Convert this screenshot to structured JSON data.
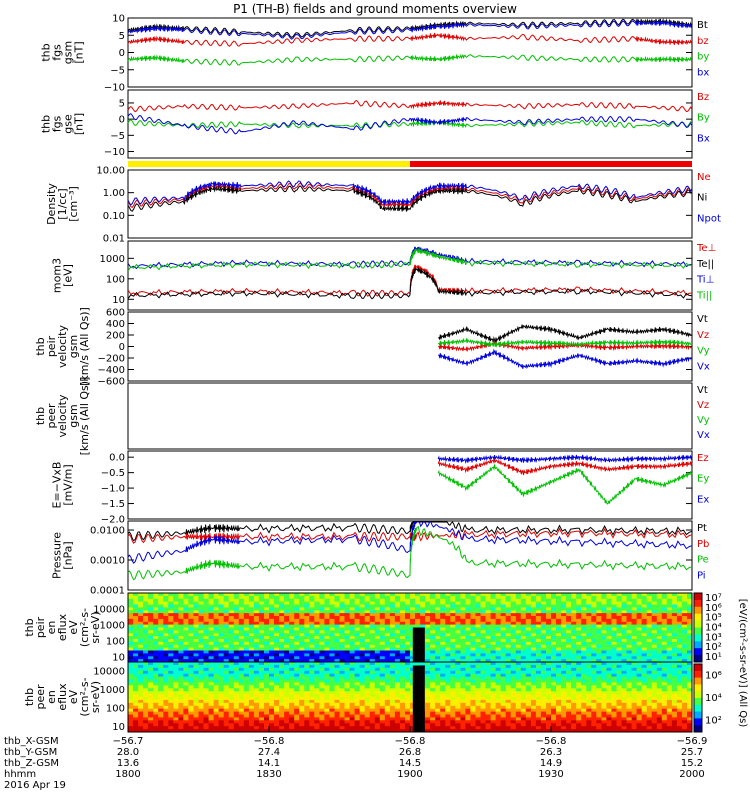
{
  "title": "P1 (TH-B) fields and ground moments overview",
  "chart_data": [
    {
      "type": "line",
      "ylabel": [
        "thb",
        "fgs",
        "gsm",
        "[nT]"
      ],
      "ylim": [
        -10,
        10
      ],
      "yticks": [
        "10",
        "5",
        "0",
        "−5",
        "−10"
      ],
      "legend": [
        "Bt",
        "bz",
        "by",
        "bx"
      ],
      "legend_colors": [
        "#000000",
        "#e00000",
        "#00c000",
        "#0000dd"
      ],
      "series": [
        {
          "name": "Bt",
          "x": [
            0,
            0.05,
            0.1,
            0.2,
            0.3,
            0.4,
            0.5,
            0.55,
            0.6,
            0.7,
            0.8,
            0.9,
            0.95,
            1.0
          ],
          "values": [
            6.5,
            7.5,
            7,
            6,
            5,
            6.5,
            7,
            8,
            8.5,
            8,
            8.5,
            9,
            9,
            8
          ]
        },
        {
          "name": "bz",
          "x": [
            0,
            0.05,
            0.1,
            0.2,
            0.3,
            0.4,
            0.5,
            0.55,
            0.6,
            0.7,
            0.8,
            0.9,
            0.95,
            1.0
          ],
          "values": [
            3,
            4,
            3,
            2.5,
            3.5,
            4,
            4,
            5,
            4,
            4.5,
            3.5,
            4,
            3,
            3
          ]
        },
        {
          "name": "by",
          "x": [
            0,
            0.05,
            0.1,
            0.2,
            0.3,
            0.4,
            0.5,
            0.55,
            0.6,
            0.7,
            0.8,
            0.9,
            0.95,
            1.0
          ],
          "values": [
            -2,
            -1.5,
            -2.5,
            -3,
            -2,
            -2,
            -1.5,
            -2,
            -1,
            -1.5,
            -2,
            -2,
            -2,
            -2
          ]
        },
        {
          "name": "bx",
          "x": [
            0,
            0.05,
            0.1,
            0.2,
            0.3,
            0.4,
            0.5,
            0.55,
            0.6,
            0.7,
            0.8,
            0.9,
            0.95,
            1.0
          ],
          "values": [
            6,
            7,
            6.5,
            5.5,
            4.5,
            6,
            6.5,
            7.5,
            8,
            7.5,
            8,
            8.5,
            8.5,
            7.5
          ]
        }
      ]
    },
    {
      "type": "line",
      "ylabel": [
        "thb",
        "fgs",
        "gse",
        "[nT]"
      ],
      "ylim": [
        -12,
        9
      ],
      "yticks": [
        "5",
        "0",
        "−5",
        "−10"
      ],
      "legend": [
        "Bz",
        "By",
        "Bx"
      ],
      "legend_colors": [
        "#e00000",
        "#00c000",
        "#0000dd"
      ],
      "series": [
        {
          "name": "Bz",
          "x": [
            0,
            0.1,
            0.2,
            0.3,
            0.4,
            0.5,
            0.55,
            0.6,
            0.7,
            0.8,
            0.9,
            1.0
          ],
          "values": [
            3,
            4,
            3.5,
            4,
            5,
            4,
            5,
            4.5,
            4,
            4.5,
            4,
            3
          ]
        },
        {
          "name": "By",
          "x": [
            0,
            0.1,
            0.2,
            0.3,
            0.4,
            0.5,
            0.55,
            0.6,
            0.7,
            0.8,
            0.9,
            1.0
          ],
          "values": [
            -1,
            -2,
            -1.5,
            -2,
            -2,
            -1.5,
            -1,
            -2,
            -1.5,
            -1,
            -2,
            -1.5
          ]
        },
        {
          "name": "Bx",
          "x": [
            0,
            0.1,
            0.2,
            0.3,
            0.4,
            0.5,
            0.55,
            0.6,
            0.7,
            0.8,
            0.9,
            1.0
          ],
          "values": [
            1,
            -2,
            -4,
            -1,
            -3,
            0,
            -1,
            0,
            -1,
            0,
            0,
            -2
          ]
        }
      ]
    },
    {
      "type": "line",
      "ylabel": [
        "Density",
        "[1/cc]",
        "[cm⁻³]"
      ],
      "ylim": [
        0.01,
        10
      ],
      "yscale": "log",
      "yticks": [
        "10.00",
        "1.00",
        "0.10",
        "0.01"
      ],
      "legend": [
        "Ne",
        "Ni",
        "Npot"
      ],
      "legend_colors": [
        "#e00000",
        "#000000",
        "#0000dd"
      ],
      "series": [
        {
          "name": "Ne",
          "x": [
            0,
            0.1,
            0.15,
            0.2,
            0.3,
            0.4,
            0.45,
            0.5,
            0.55,
            0.6,
            0.7,
            0.8,
            0.9,
            1.0
          ],
          "values": [
            0.3,
            0.5,
            2,
            1.5,
            2,
            1.5,
            0.3,
            0.3,
            1.5,
            1.5,
            0.4,
            1.5,
            0.5,
            1.2
          ]
        },
        {
          "name": "Ni",
          "x": [
            0,
            0.1,
            0.15,
            0.2,
            0.3,
            0.4,
            0.45,
            0.5,
            0.55,
            0.6,
            0.7,
            0.8,
            0.9,
            1.0
          ],
          "values": [
            0.2,
            0.4,
            1.5,
            1.2,
            1.5,
            1.2,
            0.2,
            0.2,
            1.2,
            1.2,
            0.3,
            1.2,
            0.4,
            1
          ]
        },
        {
          "name": "Npot",
          "x": [
            0,
            0.1,
            0.15,
            0.2,
            0.3,
            0.4,
            0.45,
            0.5,
            0.55,
            0.6,
            0.7,
            0.8,
            0.9,
            1.0
          ],
          "values": [
            0.4,
            0.6,
            2.5,
            2,
            2.5,
            2,
            0.4,
            0.4,
            2,
            2,
            0.5,
            2,
            0.6,
            1.5
          ]
        }
      ]
    },
    {
      "type": "line",
      "ylabel": [
        "mom3",
        "[eV]"
      ],
      "ylim": [
        3,
        7000
      ],
      "yscale": "log",
      "yticks": [
        "1000",
        "100",
        "10"
      ],
      "legend": [
        "Te⊥",
        "Te||",
        "Ti⊥",
        "Ti||"
      ],
      "legend_colors": [
        "#e00000",
        "#000000",
        "#0000dd",
        "#00c000"
      ],
      "series": [
        {
          "name": "Te⊥",
          "x": [
            0,
            0.2,
            0.4,
            0.5,
            0.51,
            0.55,
            0.6,
            0.8,
            1.0
          ],
          "values": [
            20,
            25,
            20,
            20,
            400,
            30,
            25,
            30,
            20
          ]
        },
        {
          "name": "Te||",
          "x": [
            0,
            0.2,
            0.4,
            0.5,
            0.51,
            0.55,
            0.6,
            0.8,
            1.0
          ],
          "values": [
            15,
            20,
            15,
            15,
            300,
            25,
            20,
            25,
            15
          ]
        },
        {
          "name": "Ti⊥",
          "x": [
            0,
            0.2,
            0.4,
            0.5,
            0.51,
            0.55,
            0.6,
            0.8,
            1.0
          ],
          "values": [
            400,
            600,
            500,
            600,
            3000,
            1500,
            700,
            600,
            500
          ]
        },
        {
          "name": "Ti||",
          "x": [
            0,
            0.2,
            0.4,
            0.5,
            0.51,
            0.55,
            0.6,
            0.8,
            1.0
          ],
          "values": [
            350,
            500,
            450,
            500,
            2500,
            1200,
            600,
            500,
            450
          ]
        }
      ]
    },
    {
      "type": "line",
      "ylabel": [
        "thb",
        "peir",
        "velocity",
        "gsm",
        "[km/s (All Qs)]"
      ],
      "ylim": [
        -600,
        600
      ],
      "yticks": [
        "600",
        "400",
        "200",
        "0",
        "−200",
        "−400",
        "−600"
      ],
      "legend": [
        "Vt",
        "Vz",
        "Vy",
        "Vx"
      ],
      "legend_colors": [
        "#000000",
        "#e00000",
        "#00c000",
        "#0000dd"
      ],
      "series": [
        {
          "name": "Vt",
          "x": [
            0.55,
            0.6,
            0.65,
            0.7,
            0.75,
            0.8,
            0.85,
            0.9,
            0.95,
            1.0
          ],
          "values": [
            150,
            300,
            100,
            350,
            300,
            150,
            300,
            250,
            300,
            200
          ]
        },
        {
          "name": "Vz",
          "x": [
            0.55,
            0.6,
            0.65,
            0.7,
            0.75,
            0.8,
            0.85,
            0.9,
            0.95,
            1.0
          ],
          "values": [
            0,
            -50,
            50,
            -30,
            0,
            20,
            -20,
            0,
            10,
            -10
          ]
        },
        {
          "name": "Vy",
          "x": [
            0.55,
            0.6,
            0.65,
            0.7,
            0.75,
            0.8,
            0.85,
            0.9,
            0.95,
            1.0
          ],
          "values": [
            50,
            100,
            30,
            80,
            60,
            40,
            70,
            60,
            80,
            50
          ]
        },
        {
          "name": "Vx",
          "x": [
            0.55,
            0.6,
            0.65,
            0.7,
            0.75,
            0.8,
            0.85,
            0.9,
            0.95,
            1.0
          ],
          "values": [
            -150,
            -300,
            -100,
            -350,
            -300,
            -150,
            -300,
            -250,
            -300,
            -200
          ]
        }
      ]
    },
    {
      "type": "line",
      "ylabel": [
        "thb",
        "peer",
        "velocity",
        "gsm",
        "[km/s (All Qs)]"
      ],
      "legend": [
        "Vt",
        "Vz",
        "Vy",
        "Vx"
      ],
      "legend_colors": [
        "#000000",
        "#e00000",
        "#00c000",
        "#0000dd"
      ],
      "series": []
    },
    {
      "type": "line",
      "ylabel": [
        "E=−VxB",
        "[mV/m]"
      ],
      "ylim": [
        -2,
        0.2
      ],
      "yticks": [
        "0.0",
        "−0.5",
        "−1.0",
        "−1.5",
        "−2.0"
      ],
      "legend": [
        "Ez",
        "Ey",
        "Ex"
      ],
      "legend_colors": [
        "#e00000",
        "#00c000",
        "#0000dd"
      ],
      "series": [
        {
          "name": "Ez",
          "x": [
            0.55,
            0.6,
            0.65,
            0.7,
            0.75,
            0.8,
            0.85,
            0.9,
            0.95,
            1.0
          ],
          "values": [
            -0.2,
            -0.4,
            -0.1,
            -0.5,
            -0.3,
            -0.2,
            -0.4,
            -0.3,
            -0.3,
            -0.2
          ]
        },
        {
          "name": "Ey",
          "x": [
            0.55,
            0.6,
            0.65,
            0.7,
            0.75,
            0.8,
            0.85,
            0.9,
            0.95,
            1.0
          ],
          "values": [
            -0.5,
            -1.0,
            -0.3,
            -1.2,
            -0.8,
            -0.4,
            -1.5,
            -0.7,
            -0.9,
            -0.5
          ]
        },
        {
          "name": "Ex",
          "x": [
            0.55,
            0.6,
            0.65,
            0.7,
            0.75,
            0.8,
            0.85,
            0.9,
            0.95,
            1.0
          ],
          "values": [
            -0.05,
            -0.1,
            0,
            -0.1,
            -0.05,
            0,
            -0.1,
            -0.05,
            -0.05,
            0
          ]
        }
      ]
    },
    {
      "type": "line",
      "ylabel": [
        "Pressure",
        "[nPa]"
      ],
      "ylim": [
        0.0001,
        0.02
      ],
      "yscale": "log",
      "yticks": [
        "0.0100",
        "0.0010",
        "0.0001"
      ],
      "legend": [
        "Pt",
        "Pb",
        "Pe",
        "Pi"
      ],
      "legend_colors": [
        "#000000",
        "#e00000",
        "#00c000",
        "#0000dd"
      ],
      "series": [
        {
          "name": "Pt",
          "x": [
            0,
            0.1,
            0.15,
            0.2,
            0.4,
            0.5,
            0.51,
            0.6,
            0.8,
            1.0
          ],
          "values": [
            0.006,
            0.008,
            0.012,
            0.011,
            0.012,
            0.009,
            0.03,
            0.01,
            0.01,
            0.009
          ]
        },
        {
          "name": "Pb",
          "x": [
            0,
            0.1,
            0.15,
            0.2,
            0.4,
            0.5,
            0.51,
            0.6,
            0.8,
            1.0
          ],
          "values": [
            0.005,
            0.006,
            0.006,
            0.006,
            0.006,
            0.006,
            0.006,
            0.007,
            0.008,
            0.007
          ]
        },
        {
          "name": "Pe",
          "x": [
            0,
            0.1,
            0.15,
            0.2,
            0.4,
            0.5,
            0.51,
            0.6,
            0.8,
            1.0
          ],
          "values": [
            0.0003,
            0.0004,
            0.0008,
            0.0006,
            0.0006,
            0.0003,
            0.01,
            0.0008,
            0.0007,
            0.0006
          ]
        },
        {
          "name": "Pi",
          "x": [
            0,
            0.1,
            0.15,
            0.2,
            0.4,
            0.5,
            0.51,
            0.6,
            0.8,
            1.0
          ],
          "values": [
            0.001,
            0.002,
            0.005,
            0.004,
            0.005,
            0.002,
            0.02,
            0.005,
            0.004,
            0.003
          ]
        }
      ]
    },
    {
      "type": "heatmap",
      "ylabel": [
        "thb",
        "peir",
        "en",
        "eflux",
        "eV",
        "(cm²-s-",
        "sr-eV)"
      ],
      "ylim": [
        5,
        100000
      ],
      "yscale": "log",
      "yticks": [
        "10000",
        "1000",
        "100",
        "10"
      ],
      "colorbar_ticks": [
        "10⁷",
        "10⁶",
        "10⁵",
        "10⁴",
        "10³",
        "10²",
        "10¹"
      ],
      "colorbar_label": "[eV/(cm²-s-sr-eV)] (All Qs)"
    },
    {
      "type": "heatmap",
      "ylabel": [
        "thb",
        "peer",
        "en",
        "eflux",
        "eV",
        "(cm²-s-",
        "sr-eV)"
      ],
      "ylim": [
        5,
        30000
      ],
      "yscale": "log",
      "yticks": [
        "10000",
        "1000",
        "100",
        "10"
      ],
      "colorbar_ticks": [
        "10⁶",
        "10⁴",
        "10²"
      ],
      "colorbar_label": "[eV/(cm²-s-sr-eV)] (All Qs)"
    }
  ],
  "footer": {
    "labels": [
      "thb_X-GSM",
      "thb_Y-GSM",
      "thb_Z-GSM",
      "hhmm",
      "2016 Apr 19"
    ],
    "columns": [
      [
        "−56.7",
        "28.0",
        "13.6",
        "1800"
      ],
      [
        "−56.8",
        "27.4",
        "14.1",
        "1830"
      ],
      [
        "−56.8",
        "26.8",
        "14.5",
        "1900"
      ],
      [
        "−56.8",
        "26.3",
        "14.9",
        "1930"
      ],
      [
        "−56.9",
        "25.7",
        "15.2",
        "2000"
      ]
    ]
  },
  "bar_colors": [
    "#ffee00",
    "#ee0000"
  ],
  "bar_split": 0.5
}
